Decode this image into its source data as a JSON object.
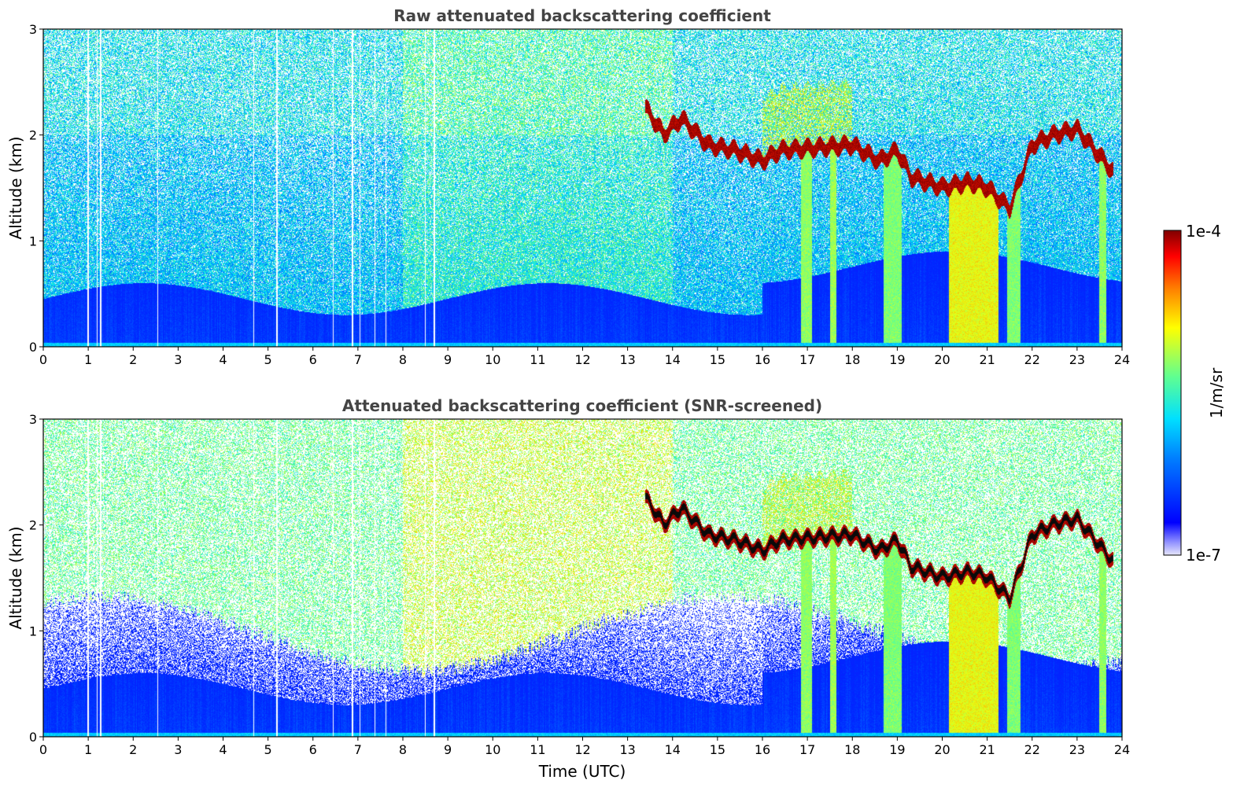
{
  "chart_data": [
    {
      "type": "heatmap",
      "title": "Raw attenuated backscattering coefficient",
      "xlabel": "",
      "ylabel": "Altitude (km)",
      "xlim": [
        0,
        24
      ],
      "ylim": [
        0,
        3
      ],
      "xticks": [
        0,
        1,
        2,
        3,
        4,
        5,
        6,
        7,
        8,
        9,
        10,
        11,
        12,
        13,
        14,
        15,
        16,
        17,
        18,
        19,
        20,
        21,
        22,
        23,
        24
      ],
      "yticks": [
        0,
        1,
        2,
        3
      ],
      "screened": false,
      "cloud_layer": {
        "x": [
          13.4,
          13.8,
          14.2,
          14.8,
          15.4,
          16.0,
          16.4,
          18.0,
          18.6,
          19.0,
          19.3,
          20.0,
          20.6,
          21.0,
          21.5,
          22.0,
          22.5,
          23.0,
          23.4,
          23.8
        ],
        "y": [
          2.25,
          2.0,
          2.15,
          1.9,
          1.85,
          1.75,
          1.85,
          1.9,
          1.75,
          1.85,
          1.6,
          1.5,
          1.55,
          1.5,
          1.3,
          1.9,
          2.0,
          2.05,
          1.85,
          1.65
        ]
      },
      "precip_shafts": [
        {
          "x0": 16.85,
          "x1": 17.1,
          "intensity": 0.5
        },
        {
          "x0": 17.5,
          "x1": 17.65,
          "intensity": 0.55
        },
        {
          "x0": 18.7,
          "x1": 19.1,
          "intensity": 0.45
        },
        {
          "x0": 20.15,
          "x1": 21.25,
          "intensity": 0.8
        },
        {
          "x0": 21.45,
          "x1": 21.75,
          "intensity": 0.45
        },
        {
          "x0": 23.5,
          "x1": 23.65,
          "intensity": 0.5
        }
      ],
      "gaps": [
        1.0,
        1.2,
        1.28,
        2.55,
        4.68,
        5.2,
        6.45,
        6.88,
        7.05,
        7.38,
        7.62,
        8.5,
        8.7
      ]
    },
    {
      "type": "heatmap",
      "title": "Attenuated backscattering coefficient (SNR-screened)",
      "xlabel": "Time (UTC)",
      "ylabel": "Altitude (km)",
      "xlim": [
        0,
        24
      ],
      "ylim": [
        0,
        3
      ],
      "xticks": [
        0,
        1,
        2,
        3,
        4,
        5,
        6,
        7,
        8,
        9,
        10,
        11,
        12,
        13,
        14,
        15,
        16,
        17,
        18,
        19,
        20,
        21,
        22,
        23,
        24
      ],
      "yticks": [
        0,
        1,
        2,
        3
      ],
      "screened": true,
      "cloud_layer": {
        "x": [
          13.4,
          13.8,
          14.2,
          14.8,
          15.4,
          16.0,
          16.4,
          18.0,
          18.6,
          19.0,
          19.3,
          20.0,
          20.6,
          21.0,
          21.5,
          22.0,
          22.5,
          23.0,
          23.4,
          23.8
        ],
        "y": [
          2.25,
          2.0,
          2.15,
          1.9,
          1.85,
          1.75,
          1.85,
          1.9,
          1.75,
          1.85,
          1.6,
          1.5,
          1.55,
          1.5,
          1.3,
          1.9,
          2.0,
          2.05,
          1.85,
          1.65
        ]
      },
      "precip_shafts": [
        {
          "x0": 16.85,
          "x1": 17.1,
          "intensity": 0.5
        },
        {
          "x0": 17.5,
          "x1": 17.65,
          "intensity": 0.55
        },
        {
          "x0": 18.7,
          "x1": 19.1,
          "intensity": 0.45
        },
        {
          "x0": 20.15,
          "x1": 21.25,
          "intensity": 0.8
        },
        {
          "x0": 21.45,
          "x1": 21.75,
          "intensity": 0.45
        },
        {
          "x0": 23.5,
          "x1": 23.65,
          "intensity": 0.5
        }
      ],
      "gaps": [
        1.0,
        1.2,
        1.28,
        2.55,
        4.68,
        5.2,
        6.45,
        6.88,
        7.05,
        7.38,
        7.62,
        8.5,
        8.7
      ]
    }
  ],
  "colorbar": {
    "label": "1/m/sr",
    "max_label": "1e-4",
    "min_label": "1e-7",
    "scale": "log",
    "colormap": "jet",
    "range": [
      1e-07,
      0.0001
    ]
  }
}
